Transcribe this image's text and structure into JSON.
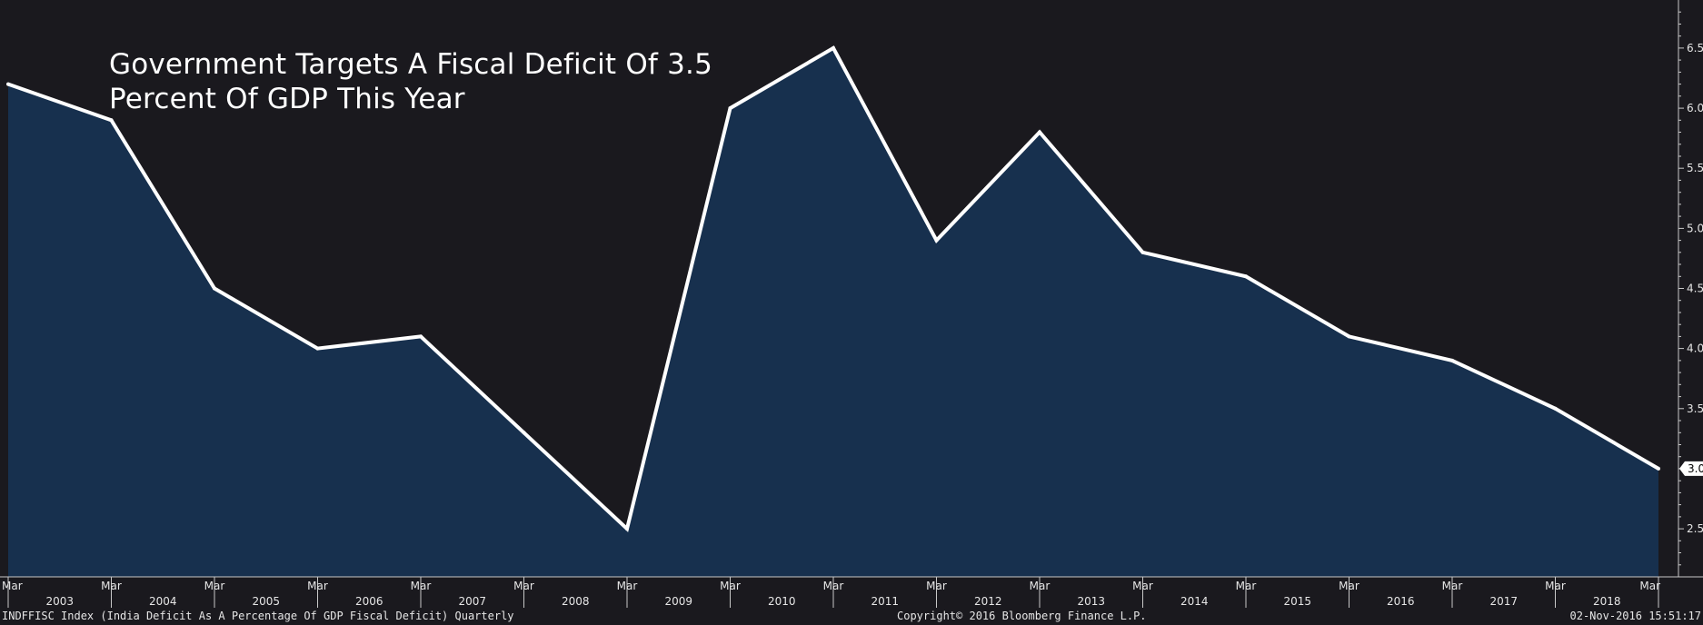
{
  "chart_data": {
    "type": "area",
    "title_lines": [
      "Government Targets A Fiscal Deficit Of 3.5",
      "Percent Of GDP This Year"
    ],
    "x": [
      "Mar 2003",
      "Mar 2004",
      "Mar 2005",
      "Mar 2006",
      "Mar 2007",
      "Mar 2008",
      "Mar 2009",
      "Mar 2010",
      "Mar 2011",
      "Mar 2012",
      "Mar 2013",
      "Mar 2014",
      "Mar 2015",
      "Mar 2016",
      "Mar 2017",
      "Mar 2018",
      "Mar 2019"
    ],
    "values": [
      6.2,
      5.9,
      4.5,
      4.0,
      4.1,
      3.3,
      2.5,
      6.0,
      6.5,
      4.9,
      5.8,
      4.8,
      4.6,
      4.1,
      3.9,
      3.5,
      3.0
    ],
    "ylim": [
      2.1,
      6.9
    ],
    "y_ticks": [
      "2.5",
      "3.0",
      "3.5",
      "4.0",
      "4.5",
      "5.0",
      "5.5",
      "6.0",
      "6.5"
    ],
    "last_value_label": "3.0",
    "x_tick_label": "Mar",
    "x_year_labels": [
      "2003",
      "2004",
      "2005",
      "2006",
      "2007",
      "2008",
      "2009",
      "2010",
      "2011",
      "2012",
      "2013",
      "2014",
      "2015",
      "2016",
      "2017",
      "2018"
    ],
    "colors": {
      "fill": "#17304e",
      "line": "#ffffff",
      "background": "#1a191e",
      "axis": "#c8c8c8"
    },
    "grid": false
  },
  "footer": {
    "index_label": "INDFFISC Index (India Deficit As A Percentage Of GDP Fiscal Deficit)  Quarterly",
    "copyright": "Copyright© 2016 Bloomberg Finance L.P.",
    "timestamp": "02-Nov-2016 15:51:17"
  }
}
